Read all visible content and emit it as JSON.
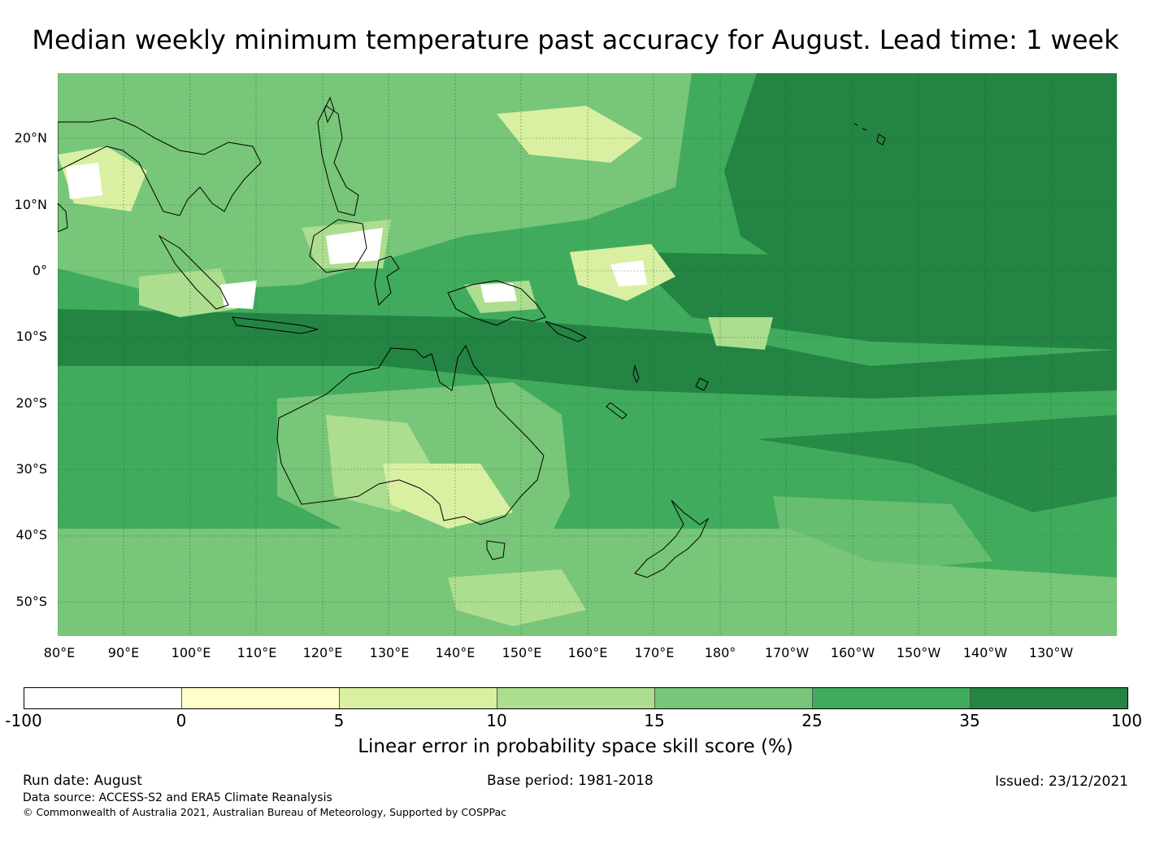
{
  "title": "Median weekly minimum temperature past accuracy for August. Lead time: 1 week",
  "map": {
    "lat_labels": [
      "20°N",
      "10°N",
      "0°",
      "10°S",
      "20°S",
      "30°S",
      "40°S",
      "50°S"
    ],
    "lon_labels": [
      "80°E",
      "90°E",
      "100°E",
      "110°E",
      "120°E",
      "130°E",
      "140°E",
      "150°E",
      "160°E",
      "170°E",
      "180°",
      "170°W",
      "160°W",
      "150°W",
      "140°W",
      "130°W"
    ],
    "extent": {
      "lon_min": 80,
      "lon_max": 240,
      "lat_min": -55,
      "lat_max": 30
    }
  },
  "colorbar": {
    "ticks": [
      "-100",
      "0",
      "5",
      "10",
      "15",
      "25",
      "35",
      "100"
    ],
    "colors": [
      "#ffffff",
      "#ffffcc",
      "#d9f0a3",
      "#addd8e",
      "#78c679",
      "#41ab5d",
      "#238443"
    ],
    "label": "Linear error in probability space skill score (%)"
  },
  "footer": {
    "run_date": "Run date: August",
    "base_period": "Base period: 1981-2018",
    "issued": "Issued: 23/12/2021",
    "data_source": "Data source: ACCESS-S2 and ERA5 Climate Reanalysis",
    "copyright": "© Commonwealth of Australia 2021, Australian Bureau of Meteorology, Supported by COSPPac"
  }
}
